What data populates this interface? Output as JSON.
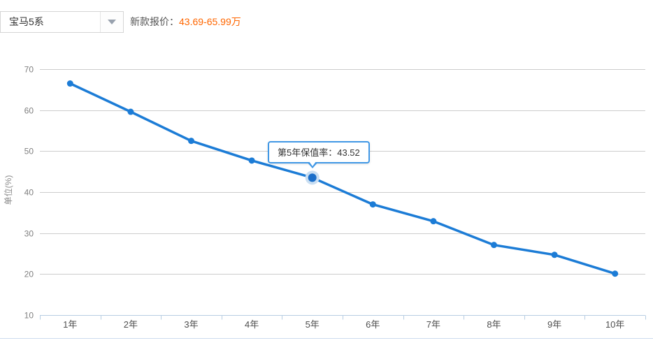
{
  "header": {
    "series_select": {
      "value": "宝马5系"
    },
    "price": {
      "label": "新款报价：",
      "value": "43.69-65.99万",
      "color": "#ff6600"
    }
  },
  "tooltip": {
    "text": "第5年保值率：43.52",
    "border_color": "#4198e5"
  },
  "chart_data": {
    "type": "line",
    "title": "",
    "categories": [
      "1年",
      "2年",
      "3年",
      "4年",
      "5年",
      "6年",
      "7年",
      "8年",
      "9年",
      "10年"
    ],
    "series": [
      {
        "name": "保值率",
        "values": [
          66.5,
          59.6,
          52.5,
          47.7,
          43.52,
          37.0,
          32.9,
          27.1,
          24.7,
          20.1
        ]
      }
    ],
    "highlight": {
      "index": 4,
      "value_label": "43.52",
      "tooltip": "第5年保值率：43.52"
    },
    "xlabel": "",
    "ylabel": "单位(%)",
    "yticks": [
      70,
      60,
      50,
      40,
      30,
      20,
      10
    ],
    "ylim": [
      10,
      70
    ],
    "grid": true,
    "legend": "none",
    "line_color": "#1c7cd6",
    "highlight_point_color": "#1b6ec9",
    "highlight_halo_color": "#c9def2",
    "gridline_color": "#cccccc",
    "axis_color": "#b7cde2",
    "y_tick_label_color": "#7f7f7f",
    "x_tick_label_color": "#4f4f4f",
    "bottom_divider_color": "#ccdcee"
  }
}
